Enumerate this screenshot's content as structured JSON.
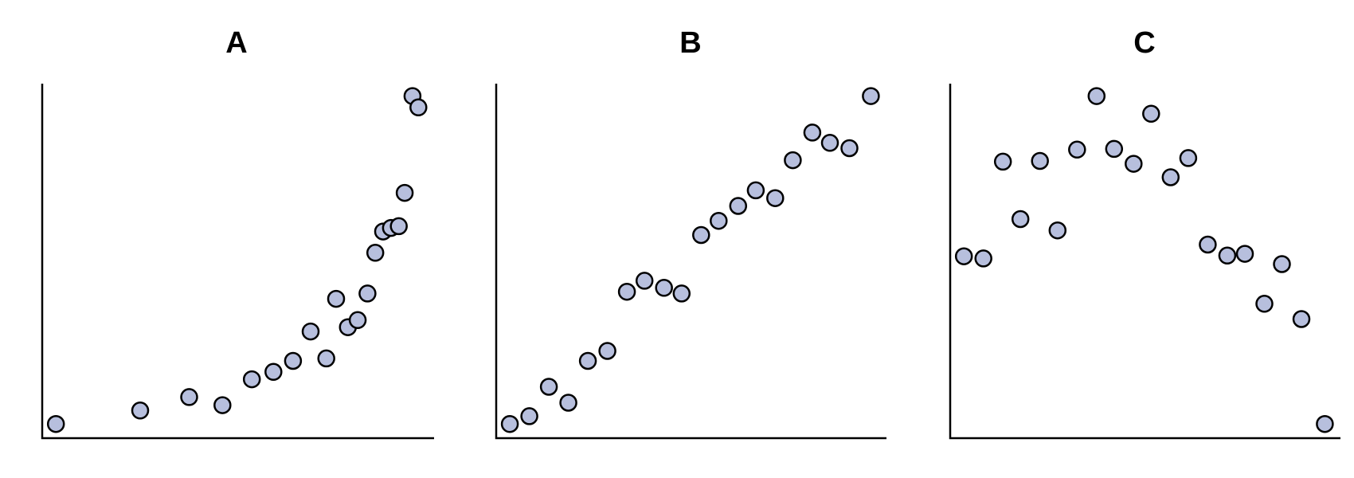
{
  "chart_data": [
    {
      "type": "scatter",
      "title": "A",
      "xlabel": "",
      "ylabel": "",
      "xlim": [
        0,
        100
      ],
      "ylim": [
        0,
        100
      ],
      "grid": false,
      "marker_color": "#b7bfdd",
      "edge_color": "#000000",
      "points": [
        {
          "x": 3.5,
          "y": 4
        },
        {
          "x": 25,
          "y": 7.8
        },
        {
          "x": 37.5,
          "y": 11.6
        },
        {
          "x": 46,
          "y": 9.3
        },
        {
          "x": 53.5,
          "y": 16.6
        },
        {
          "x": 59,
          "y": 18.7
        },
        {
          "x": 64,
          "y": 21.8
        },
        {
          "x": 68.5,
          "y": 30.1
        },
        {
          "x": 72.5,
          "y": 22.5
        },
        {
          "x": 75,
          "y": 39.3
        },
        {
          "x": 78,
          "y": 31.3
        },
        {
          "x": 80.5,
          "y": 33.3
        },
        {
          "x": 83,
          "y": 40.8
        },
        {
          "x": 85,
          "y": 52.3
        },
        {
          "x": 87,
          "y": 58.3
        },
        {
          "x": 89,
          "y": 59.3
        },
        {
          "x": 91,
          "y": 59.8
        },
        {
          "x": 92.5,
          "y": 69.2
        },
        {
          "x": 94.5,
          "y": 96.5
        },
        {
          "x": 96,
          "y": 93.3
        }
      ]
    },
    {
      "type": "scatter",
      "title": "B",
      "xlabel": "",
      "ylabel": "",
      "xlim": [
        0,
        100
      ],
      "ylim": [
        0,
        100
      ],
      "grid": false,
      "marker_color": "#b7bfdd",
      "edge_color": "#000000",
      "points": [
        {
          "x": 3.5,
          "y": 4
        },
        {
          "x": 8.5,
          "y": 6.2
        },
        {
          "x": 13.5,
          "y": 14.5
        },
        {
          "x": 18.5,
          "y": 10
        },
        {
          "x": 23.5,
          "y": 21.8
        },
        {
          "x": 28.5,
          "y": 24.6
        },
        {
          "x": 33.5,
          "y": 41.3
        },
        {
          "x": 38,
          "y": 44.4
        },
        {
          "x": 43,
          "y": 42.4
        },
        {
          "x": 47.5,
          "y": 40.8
        },
        {
          "x": 52.5,
          "y": 57.3
        },
        {
          "x": 57,
          "y": 61.3
        },
        {
          "x": 62,
          "y": 65.5
        },
        {
          "x": 66.5,
          "y": 69.9
        },
        {
          "x": 71.5,
          "y": 67.7
        },
        {
          "x": 76,
          "y": 78.4
        },
        {
          "x": 81,
          "y": 86.2
        },
        {
          "x": 85.5,
          "y": 83.3
        },
        {
          "x": 90.5,
          "y": 81.8
        },
        {
          "x": 96,
          "y": 96.5
        }
      ]
    },
    {
      "type": "scatter",
      "title": "C",
      "xlabel": "",
      "ylabel": "",
      "xlim": [
        0,
        100
      ],
      "ylim": [
        0,
        100
      ],
      "grid": false,
      "marker_color": "#b7bfdd",
      "edge_color": "#000000",
      "points": [
        {
          "x": 3.5,
          "y": 51.3
        },
        {
          "x": 8.5,
          "y": 50.7
        },
        {
          "x": 13.5,
          "y": 78
        },
        {
          "x": 18,
          "y": 61.8
        },
        {
          "x": 23,
          "y": 78.2
        },
        {
          "x": 27.5,
          "y": 58.6
        },
        {
          "x": 32.5,
          "y": 81.4
        },
        {
          "x": 37.5,
          "y": 96.5
        },
        {
          "x": 42,
          "y": 81.6
        },
        {
          "x": 47,
          "y": 77.4
        },
        {
          "x": 51.5,
          "y": 91.5
        },
        {
          "x": 56.5,
          "y": 73.6
        },
        {
          "x": 61,
          "y": 79
        },
        {
          "x": 66,
          "y": 54.6
        },
        {
          "x": 71,
          "y": 51.5
        },
        {
          "x": 75.5,
          "y": 52
        },
        {
          "x": 80.5,
          "y": 37.9
        },
        {
          "x": 85,
          "y": 49.1
        },
        {
          "x": 90,
          "y": 33.6
        },
        {
          "x": 96,
          "y": 4
        }
      ]
    }
  ]
}
